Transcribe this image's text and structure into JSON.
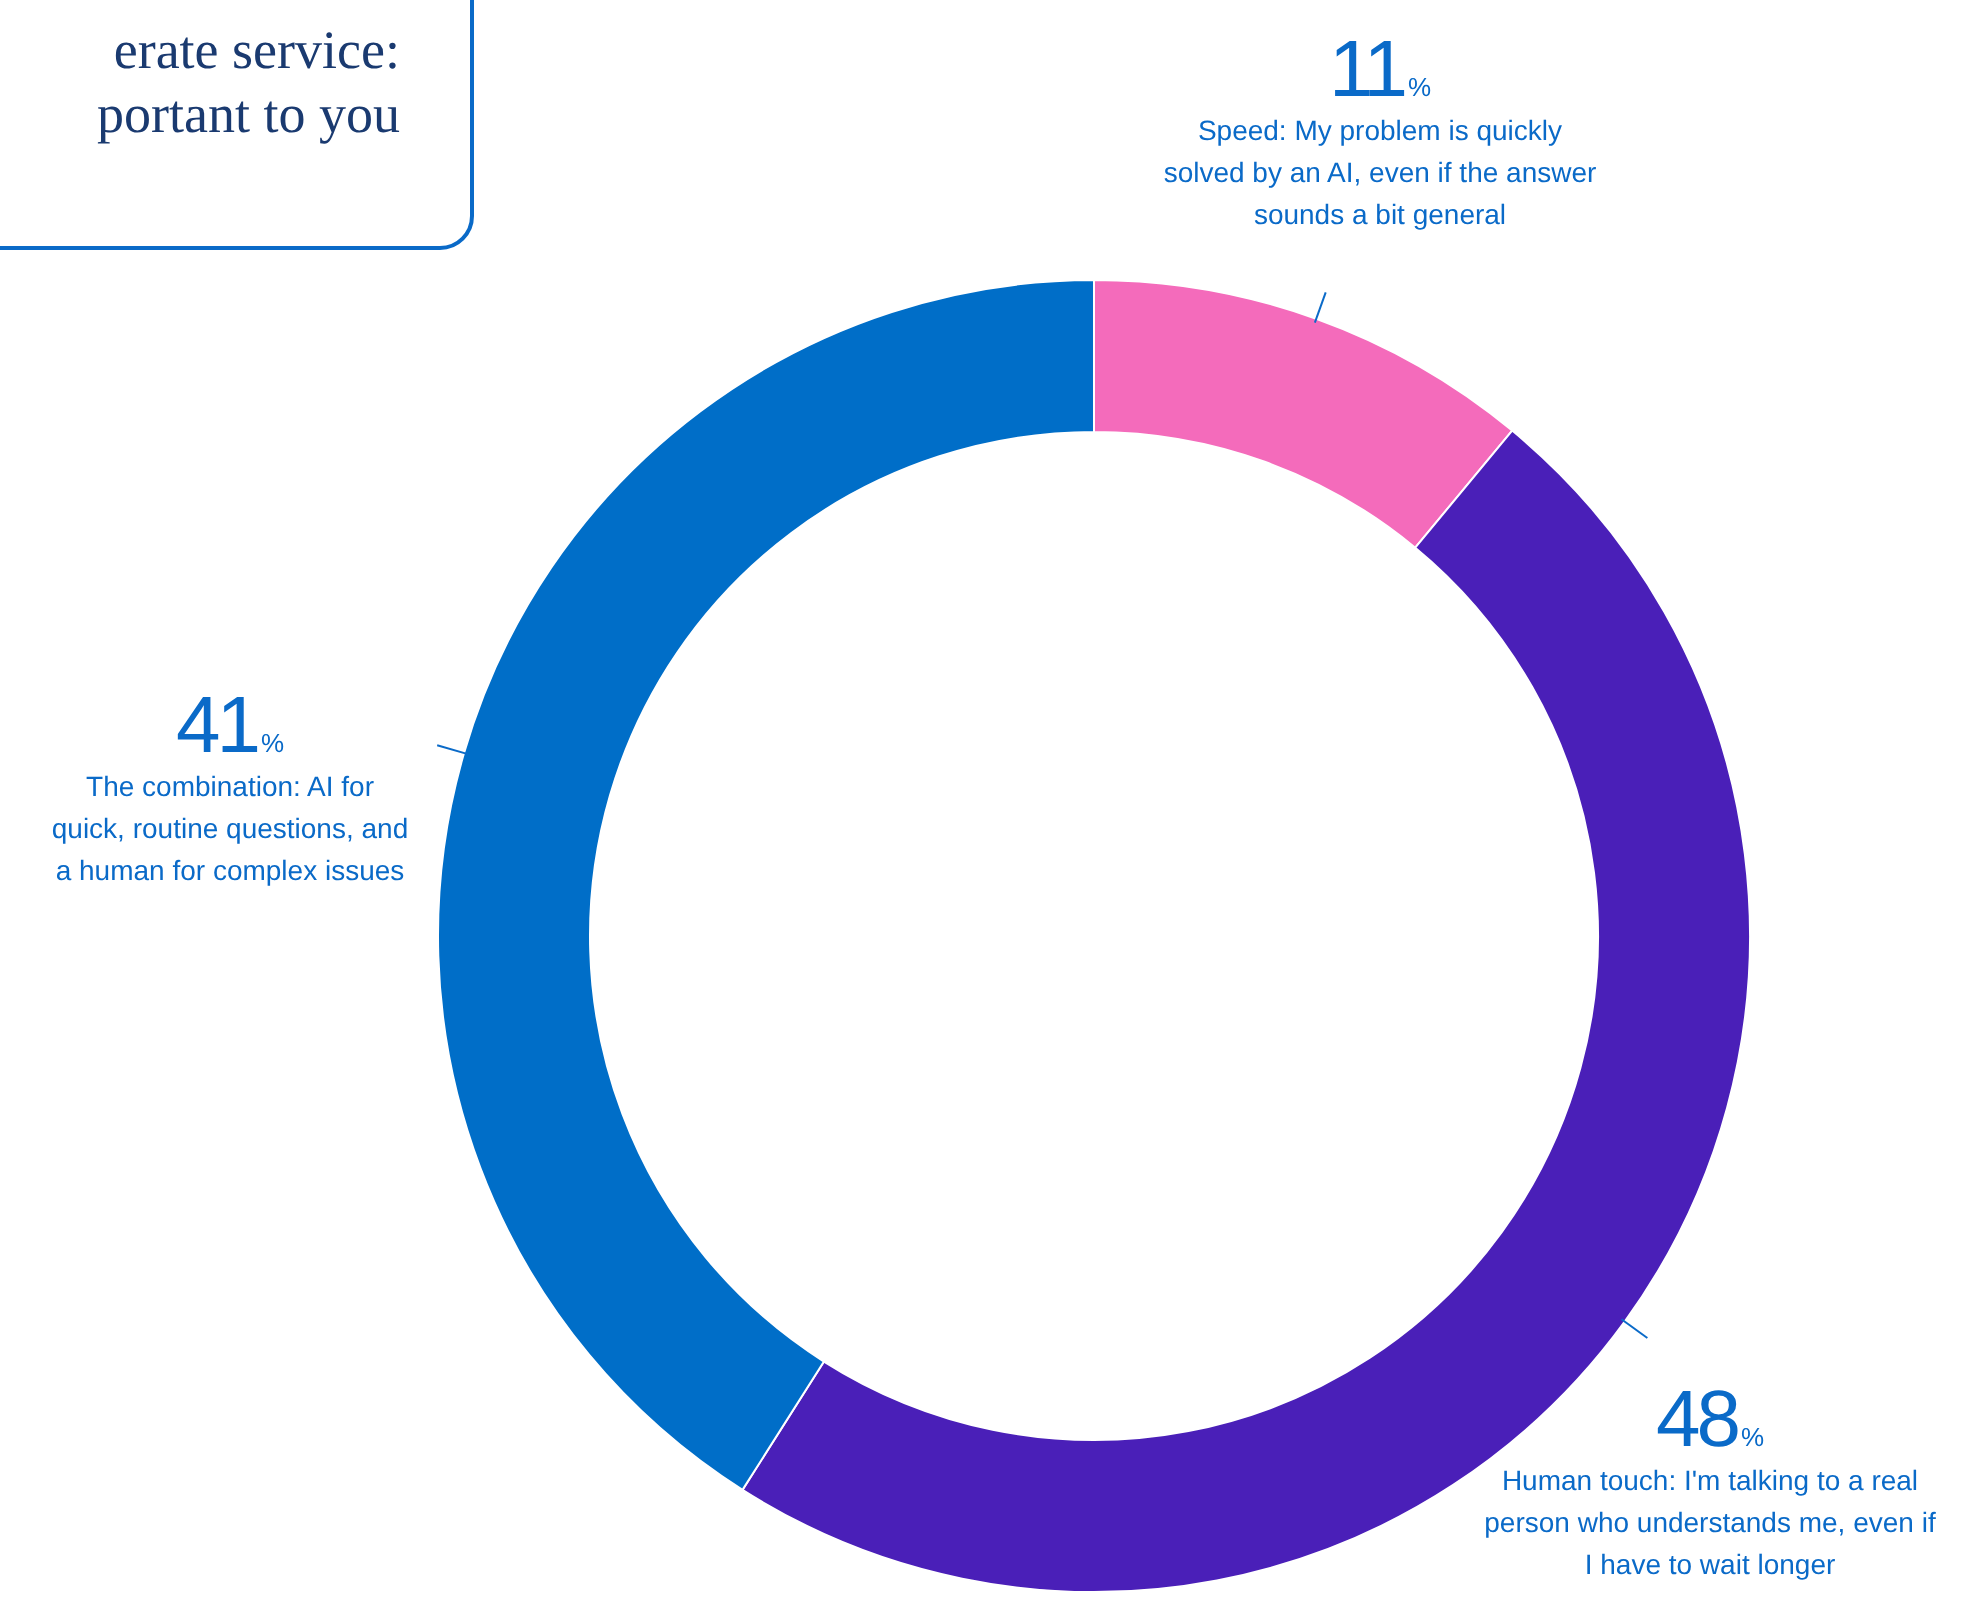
{
  "chart_data": {
    "type": "donut",
    "title": "erate service:\nportant to you",
    "categories": [
      "Speed: My problem is quickly\nsolved by an AI, even if the answer\nsounds a bit general",
      "Human touch: I'm talking to a real\nperson who understands me, even if\nI have to wait longer",
      "The combination: AI for\nquick, routine questions, and\na human for complex issues"
    ],
    "values": [
      11,
      48,
      41
    ],
    "colors": [
      "#f46bbb",
      "#4a1fb8",
      "#006ec8"
    ],
    "value_labels": [
      "11%",
      "48%",
      "41%"
    ]
  }
}
